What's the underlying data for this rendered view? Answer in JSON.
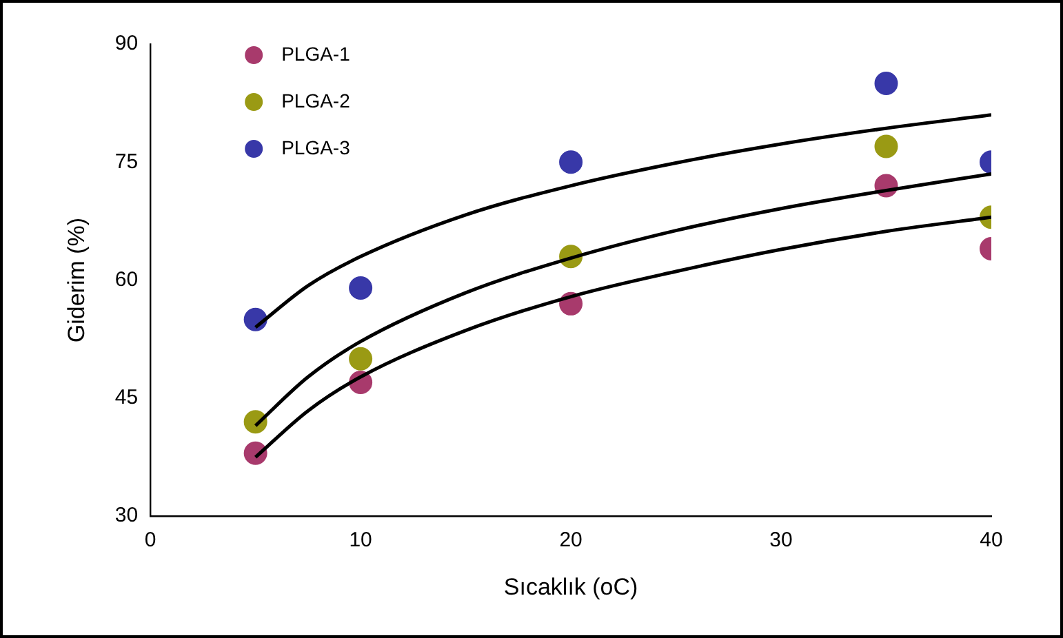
{
  "chart_data": {
    "type": "scatter",
    "xlabel": "Sıcaklık (oC)",
    "ylabel": "Giderim (%)",
    "xlim": [
      0,
      40
    ],
    "xticks": [
      0,
      10,
      20,
      30,
      40
    ],
    "ylim": [
      30,
      90
    ],
    "yticks": [
      30,
      45,
      60,
      75,
      90
    ],
    "grid": false,
    "legend": "top left",
    "marker": "circle",
    "series": [
      {
        "name": "PLGA-1",
        "color": "#a83a6c",
        "x": [
          5,
          10,
          20,
          35,
          40
        ],
        "values": [
          38,
          47,
          57,
          72,
          64
        ]
      },
      {
        "name": "PLGA-2",
        "color": "#9a9a14",
        "x": [
          5,
          10,
          20,
          35,
          40
        ],
        "values": [
          42,
          50,
          63,
          77,
          68
        ]
      },
      {
        "name": "PLGA-3",
        "color": "#3838a8",
        "x": [
          5,
          10,
          20,
          35,
          40
        ],
        "values": [
          55,
          59,
          75,
          85,
          75
        ]
      },
      {
        "type": "line",
        "color": "#000000",
        "marker": "none",
        "line_style": "solid",
        "x": [
          5,
          7.5,
          10,
          15,
          20,
          25,
          30,
          35,
          40
        ],
        "values": [
          37.5,
          43.4,
          47.7,
          53.6,
          57.9,
          61.1,
          63.9,
          66.2,
          68
        ]
      },
      {
        "type": "line",
        "color": "#000000",
        "marker": "none",
        "line_style": "solid",
        "x": [
          5,
          7.5,
          10,
          15,
          20,
          25,
          30,
          35,
          40
        ],
        "values": [
          41.5,
          47.7,
          52.2,
          58.4,
          62.8,
          66.3,
          69.1,
          71.4,
          73.5
        ]
      },
      {
        "type": "line",
        "color": "#000000",
        "marker": "none",
        "line_style": "solid",
        "x": [
          5,
          7.5,
          10,
          15,
          20,
          25,
          30,
          35,
          40
        ],
        "values": [
          54,
          59.3,
          63,
          68.3,
          72,
          74.9,
          77.3,
          79.3,
          81
        ]
      }
    ]
  }
}
